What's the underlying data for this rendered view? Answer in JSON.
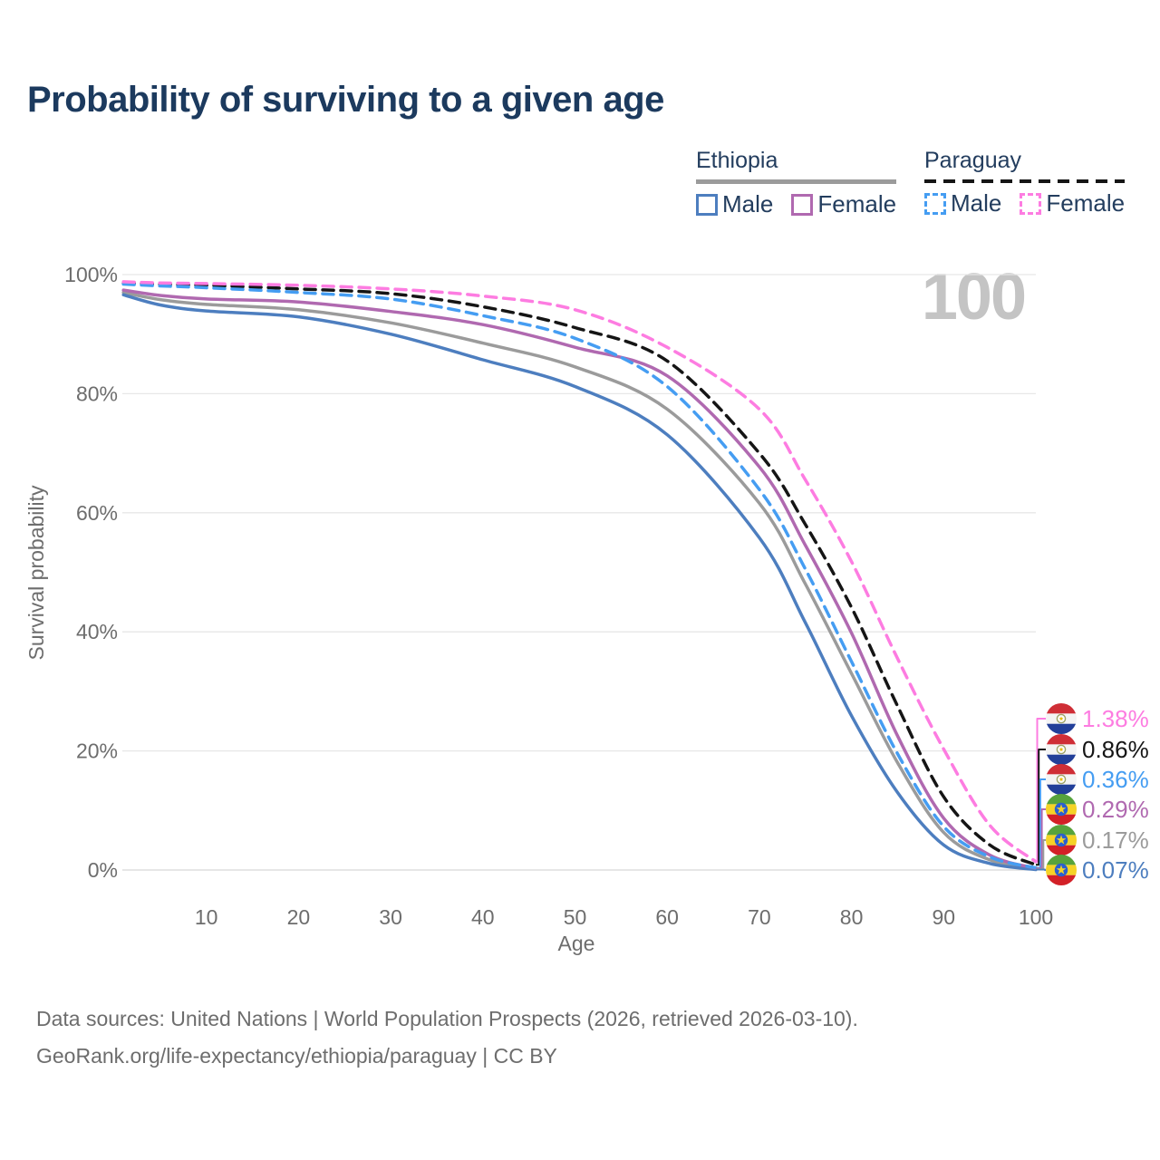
{
  "title": "Probability of surviving to a given age",
  "watermark": "100",
  "legend": {
    "groups": [
      {
        "label": "Ethiopia",
        "line_style": "solid",
        "underline_color": "#9b9b9b",
        "items": [
          {
            "label": "Male",
            "color": "#4d7ebf"
          },
          {
            "label": "Female",
            "color": "#b069b0"
          }
        ]
      },
      {
        "label": "Paraguay",
        "line_style": "dashed",
        "underline_color": "#151515",
        "items": [
          {
            "label": "Male",
            "color": "#459df2"
          },
          {
            "label": "Female",
            "color": "#fd7ce1"
          }
        ]
      }
    ]
  },
  "chart_data": {
    "type": "line",
    "title": "Probability of surviving to a given age",
    "xlabel": "Age",
    "ylabel": "Survival probability",
    "xlim": [
      0,
      100
    ],
    "ylim": [
      0,
      100
    ],
    "x_ticks": [
      10,
      20,
      30,
      40,
      50,
      60,
      70,
      80,
      90,
      100
    ],
    "y_ticks": [
      0,
      20,
      40,
      60,
      80,
      100
    ],
    "y_tick_suffix": "%",
    "grid": "horizontal",
    "legend_position": "top-right",
    "x": [
      1,
      5,
      10,
      20,
      30,
      40,
      50,
      60,
      70,
      75,
      80,
      85,
      90,
      95,
      100
    ],
    "series": [
      {
        "id": "ethiopia-total",
        "country": "Ethiopia",
        "group": "all",
        "color": "#9b9b9b",
        "dash": false,
        "values": [
          97.0,
          95.8,
          95.0,
          94.1,
          91.9,
          88.5,
          84.5,
          77.4,
          61.6,
          48.0,
          33.0,
          18.0,
          6.3,
          1.7,
          0.17
        ],
        "end_label": "0.17%"
      },
      {
        "id": "ethiopia-male",
        "country": "Ethiopia",
        "group": "Male",
        "color": "#4d7ebf",
        "dash": false,
        "values": [
          96.6,
          94.9,
          93.9,
          92.9,
          90.0,
          85.7,
          81.2,
          73.1,
          55.8,
          41.5,
          25.9,
          13.0,
          4.2,
          1.1,
          0.07
        ],
        "end_label": "0.07%"
      },
      {
        "id": "ethiopia-female",
        "country": "Ethiopia",
        "group": "Female",
        "color": "#b069b0",
        "dash": false,
        "values": [
          97.4,
          96.5,
          95.9,
          95.4,
          93.8,
          91.6,
          87.8,
          83.0,
          67.7,
          54.5,
          39.8,
          22.5,
          8.7,
          2.5,
          0.29
        ],
        "end_label": "0.29%"
      },
      {
        "id": "paraguay-total",
        "country": "Paraguay",
        "group": "all",
        "color": "#151515",
        "dash": true,
        "values": [
          98.6,
          98.4,
          98.2,
          97.6,
          96.8,
          94.6,
          91.1,
          85.5,
          70.0,
          58.0,
          44.1,
          27.5,
          12.3,
          4.2,
          0.86
        ],
        "end_label": "0.86%"
      },
      {
        "id": "paraguay-male",
        "country": "Paraguay",
        "group": "Male",
        "color": "#459df2",
        "dash": true,
        "values": [
          98.4,
          98.1,
          97.8,
          97.0,
          95.9,
          93.1,
          89.3,
          81.2,
          63.9,
          50.5,
          35.0,
          19.5,
          7.3,
          2.2,
          0.36
        ],
        "end_label": "0.36%"
      },
      {
        "id": "paraguay-female",
        "country": "Paraguay",
        "group": "Female",
        "color": "#fd7ce1",
        "dash": true,
        "values": [
          98.8,
          98.6,
          98.5,
          98.2,
          97.6,
          96.4,
          94.1,
          87.8,
          77.4,
          65.5,
          51.8,
          35.5,
          20.3,
          7.5,
          1.38
        ],
        "end_label": "1.38%"
      }
    ],
    "end_labels": [
      {
        "text": "1.38%",
        "series": "paraguay-female",
        "flag": "paraguay",
        "color": "#fd7ce1"
      },
      {
        "text": "0.86%",
        "series": "paraguay-total",
        "flag": "paraguay",
        "color": "#151515"
      },
      {
        "text": "0.36%",
        "series": "paraguay-male",
        "flag": "paraguay",
        "color": "#459df2"
      },
      {
        "text": "0.29%",
        "series": "ethiopia-female",
        "flag": "ethiopia",
        "color": "#b069b0"
      },
      {
        "text": "0.17%",
        "series": "ethiopia-total",
        "flag": "ethiopia",
        "color": "#9b9b9b"
      },
      {
        "text": "0.07%",
        "series": "ethiopia-male",
        "flag": "ethiopia",
        "color": "#4d7ebf"
      }
    ]
  },
  "footer": {
    "line1": "Data sources: United Nations | World Population Prospects (2026, retrieved 2026-03-10).",
    "line2": "GeoRank.org/life-expectancy/ethiopia/paraguay | CC BY"
  }
}
